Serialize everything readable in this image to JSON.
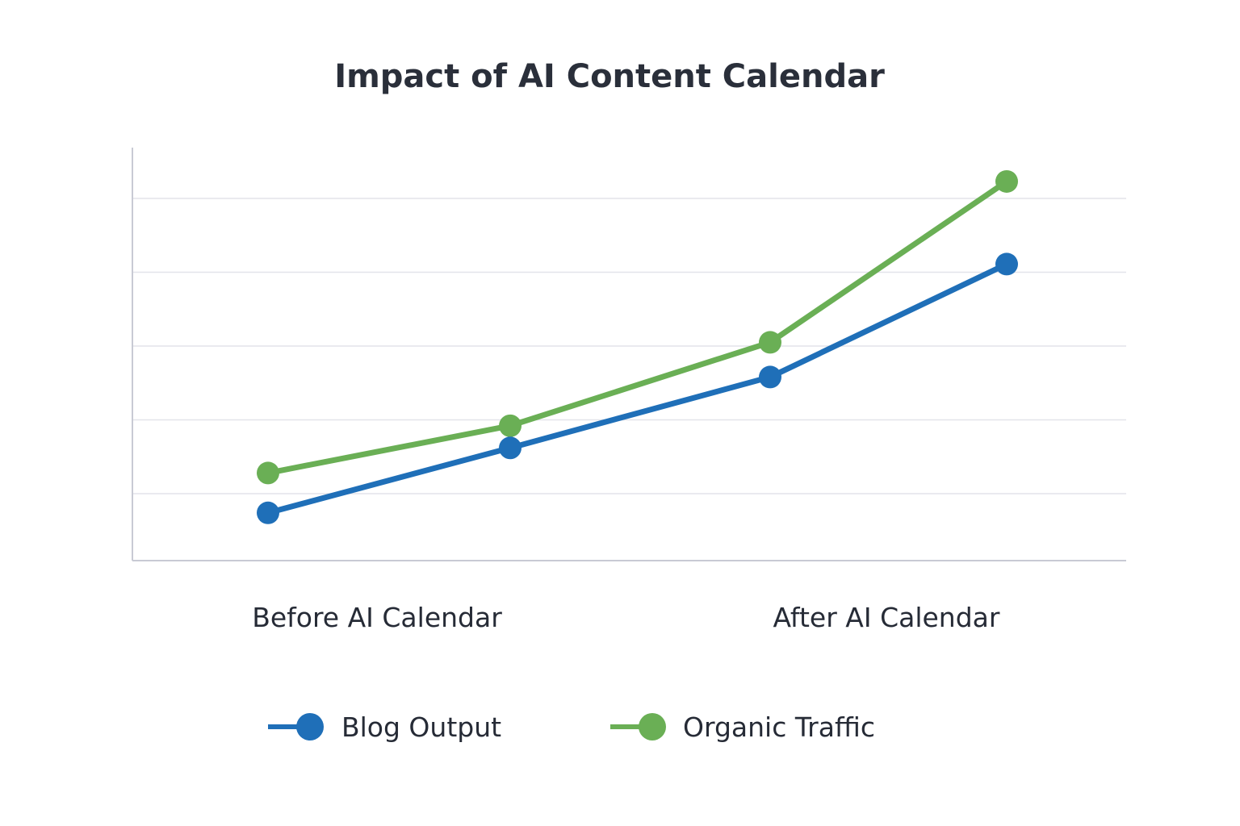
{
  "chart_data": {
    "type": "line",
    "title": "Impact of AI Content Calendar",
    "xlabel": "",
    "ylabel": "",
    "x": [
      1,
      2,
      3,
      4
    ],
    "group_labels": [
      "Before AI Calendar",
      "After AI Calendar"
    ],
    "ylim": [
      0,
      5.5
    ],
    "grid": true,
    "y_tick_labels_shown": false,
    "legend_placement": "bottom",
    "series": [
      {
        "name": "Blog Output",
        "color": "#1f6fb8",
        "values": [
          0.74,
          1.62,
          2.58,
          4.11
        ]
      },
      {
        "name": "Organic Traffic",
        "color": "#6aaf55",
        "values": [
          1.28,
          1.92,
          3.05,
          5.23
        ]
      }
    ]
  }
}
